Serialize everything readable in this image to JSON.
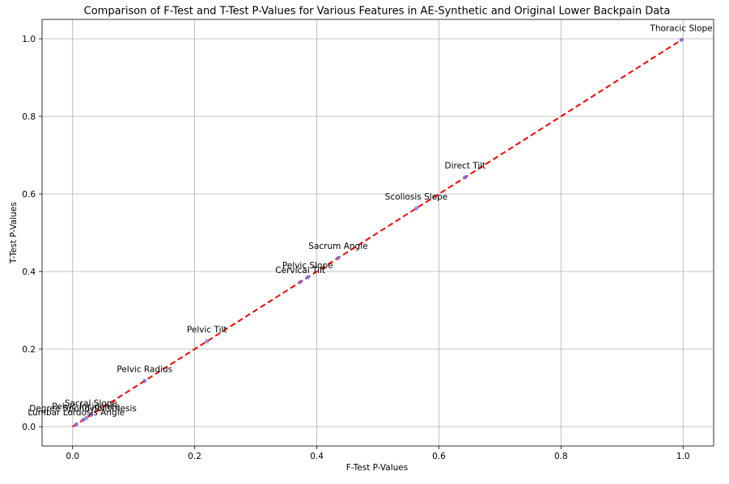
{
  "chart_data": {
    "type": "scatter",
    "title": "Comparison of F-Test and T-Test P-Values for Various Features in AE-Synthetic and Original Lower Backpain Data",
    "xlabel": "F-Test P-Values",
    "ylabel": "T-Test P-Values",
    "xlim": [
      -0.05,
      1.05
    ],
    "ylim": [
      -0.05,
      1.05
    ],
    "grid": true,
    "x_ticks": [
      0.0,
      0.2,
      0.4,
      0.6,
      0.8,
      1.0
    ],
    "y_ticks": [
      0.0,
      0.2,
      0.4,
      0.6,
      0.8,
      1.0
    ],
    "x_tick_labels": [
      "0.0",
      "0.2",
      "0.4",
      "0.6",
      "0.8",
      "1.0"
    ],
    "y_tick_labels": [
      "0.0",
      "0.2",
      "0.4",
      "0.6",
      "0.8",
      "1.0"
    ],
    "reference_line": {
      "x": [
        0,
        1
      ],
      "y": [
        0,
        1
      ],
      "color": "#ff0000",
      "style": "dashed"
    },
    "point_color": "#6f6fe6",
    "points": [
      {
        "label": "Thoracic Slope",
        "x": 0.997,
        "y": 0.997
      },
      {
        "label": "Direct Tilt",
        "x": 0.643,
        "y": 0.643
      },
      {
        "label": "Scoliosis Slope",
        "x": 0.563,
        "y": 0.563
      },
      {
        "label": "Sacrum Angle",
        "x": 0.435,
        "y": 0.435
      },
      {
        "label": "Pelvic Slope",
        "x": 0.385,
        "y": 0.385
      },
      {
        "label": "Cervical Tilt",
        "x": 0.373,
        "y": 0.373
      },
      {
        "label": "Pelvic Tilt",
        "x": 0.22,
        "y": 0.22
      },
      {
        "label": "Pelvic Radius",
        "x": 0.118,
        "y": 0.118
      },
      {
        "label": "Sacral Slope",
        "x": 0.03,
        "y": 0.03
      },
      {
        "label": "Pelvic Incidence",
        "x": 0.022,
        "y": 0.022
      },
      {
        "label": "Degree Spondylolisthesis",
        "x": 0.017,
        "y": 0.017
      },
      {
        "label": "Lumbar Lordosis Angle",
        "x": 0.006,
        "y": 0.006
      }
    ]
  }
}
